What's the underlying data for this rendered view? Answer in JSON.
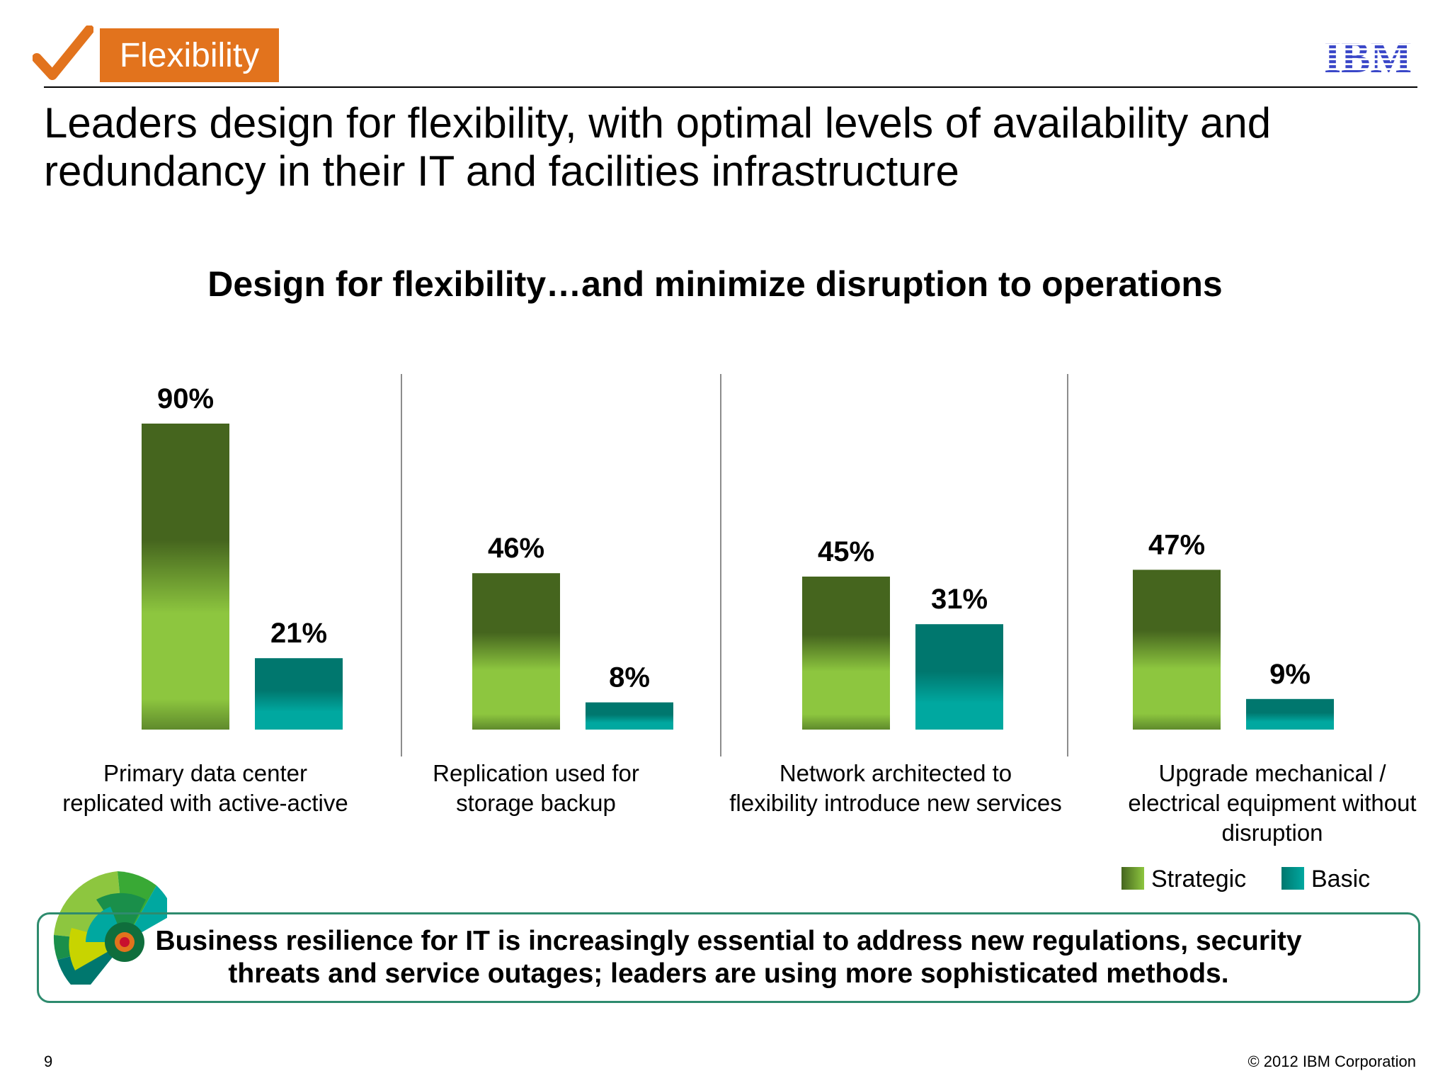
{
  "header": {
    "section_tag": "Flexibility",
    "logo_text": "IBM",
    "headline_line1": "Leaders design for flexibility, with optimal levels of availability and",
    "headline_line2": "redundancy in their IT and facilities infrastructure"
  },
  "chart_data": {
    "type": "bar",
    "title": "Design for flexibility…and minimize disruption to operations",
    "categories": [
      [
        "Primary data center",
        "replicated with active-active"
      ],
      [
        "Replication used for",
        "storage backup"
      ],
      [
        "Network architected to",
        "flexibility introduce new services"
      ],
      [
        "Upgrade mechanical /",
        "electrical equipment without",
        "disruption"
      ]
    ],
    "series": [
      {
        "name": "Strategic",
        "values": [
          90,
          46,
          45,
          47
        ],
        "labels": [
          "90%",
          "46%",
          "45%",
          "47%"
        ]
      },
      {
        "name": "Basic",
        "values": [
          21,
          8,
          31,
          9
        ],
        "labels": [
          "21%",
          "8%",
          "31%",
          "9%"
        ]
      }
    ],
    "ylim": [
      0,
      100
    ],
    "grid": false,
    "legend": "bottom-right",
    "colors": {
      "strategic_dark": "#45651e",
      "strategic_light": "#8dc63f",
      "basic_dark": "#00776e",
      "basic_light": "#00a8a0"
    }
  },
  "callout": {
    "line1": "Business resilience for IT is increasingly essential to address new regulations, security",
    "line2": "threats and service outages; leaders are using more sophisticated methods."
  },
  "footer": {
    "page_number": "9",
    "copyright": "© 2012 IBM Corporation"
  },
  "colors": {
    "accent_orange": "#e2731d",
    "ibm_blue": "#3a47c8",
    "callout_border": "#2e8b6e"
  },
  "icons": [
    "checkmark-icon",
    "ibm-logo",
    "burst-graphic"
  ]
}
